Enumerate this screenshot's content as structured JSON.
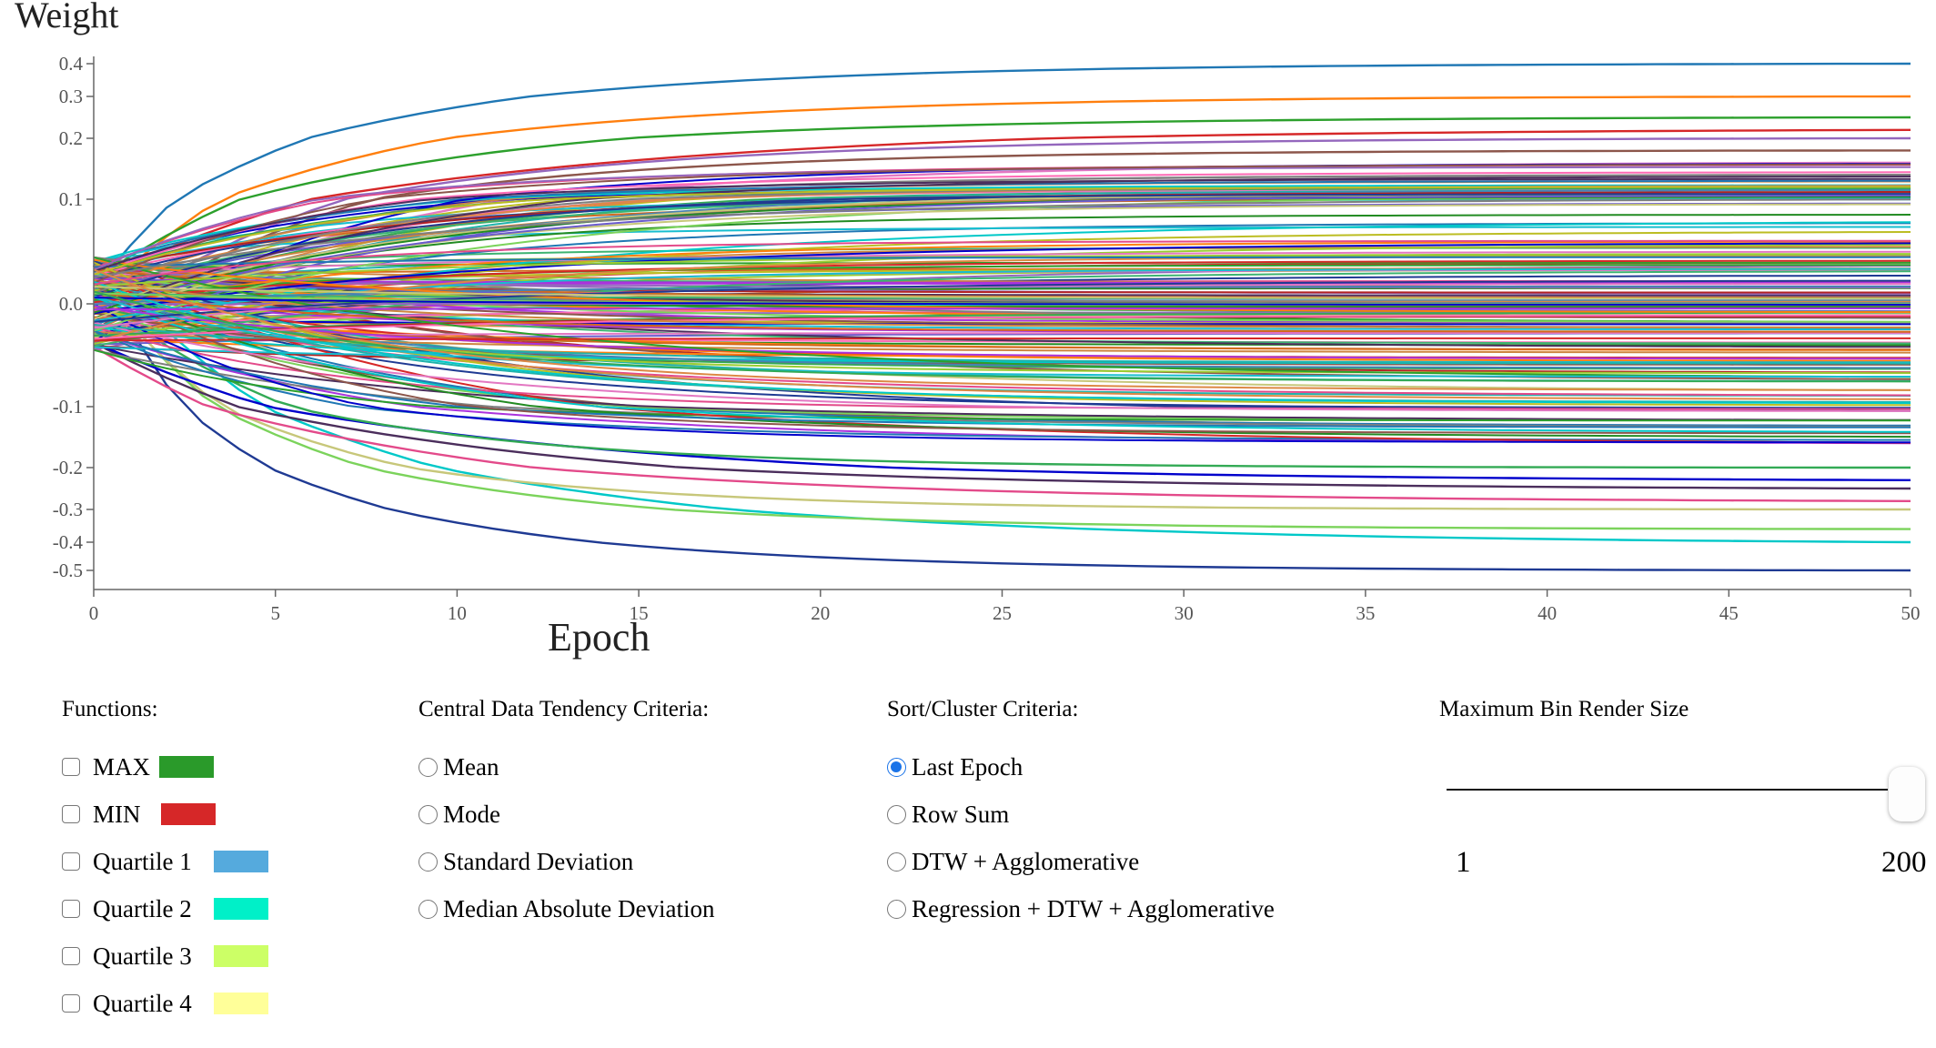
{
  "chart_data": {
    "type": "line",
    "xlabel": "Epoch",
    "ylabel": "Weight",
    "xlim": [
      0,
      50
    ],
    "x_ticks": [
      0,
      5,
      10,
      15,
      20,
      25,
      30,
      35,
      40,
      45,
      50
    ],
    "y_ticks": [
      "0.4",
      "0.3",
      "0.2",
      "0.1",
      "0.0",
      "-0.1",
      "-0.2",
      "-0.3",
      "-0.4",
      "-0.5"
    ],
    "y_scale": "symmetric-log",
    "series_count": 200,
    "top_series_final": [
      0.4,
      0.3,
      0.25,
      0.22,
      0.2,
      0.18,
      0.16,
      0.14,
      0.12,
      0.1
    ],
    "bottom_series_final": [
      -0.5,
      -0.4,
      -0.36,
      -0.3,
      -0.28,
      -0.25,
      -0.23,
      -0.2
    ],
    "start_range": [
      -0.045,
      0.045
    ],
    "palette": [
      "#1f77b4",
      "#ff7f0e",
      "#2ca02c",
      "#d62728",
      "#9467bd",
      "#8c564b",
      "#e377c2",
      "#7f7f7f",
      "#bcbd22",
      "#17becf",
      "#1f3a93",
      "#00c8c8",
      "#7bd35b",
      "#c7c77a",
      "#e34a8a",
      "#4b2e5c",
      "#0000cc",
      "#33aa55",
      "#aa33dd",
      "#dd8844",
      "#228b22",
      "#b22222",
      "#20b2aa",
      "#ff69b4",
      "#6a5acd",
      "#3cb371",
      "#cd853f",
      "#4682b4",
      "#9acd32",
      "#d2691e"
    ]
  },
  "functions": {
    "title": "Functions:",
    "items": [
      {
        "label": "MAX",
        "color": "#2a9a2a"
      },
      {
        "label": "MIN",
        "color": "#d62728"
      },
      {
        "label": "Quartile 1",
        "color": "#55aadd"
      },
      {
        "label": "Quartile 2",
        "color": "#00f0c8"
      },
      {
        "label": "Quartile 3",
        "color": "#ccff66"
      },
      {
        "label": "Quartile 4",
        "color": "#ffff99"
      }
    ]
  },
  "central": {
    "title": "Central Data Tendency Criteria:",
    "options": [
      "Mean",
      "Mode",
      "Standard Deviation",
      "Median Absolute Deviation"
    ]
  },
  "sort": {
    "title": "Sort/Cluster Criteria:",
    "options": [
      "Last Epoch",
      "Row Sum",
      "DTW + Agglomerative",
      "Regression + DTW + Agglomerative"
    ],
    "selected": "Last Epoch"
  },
  "bin": {
    "title": "Maximum Bin Render Size",
    "min": "1",
    "max": "200",
    "value": 200
  }
}
